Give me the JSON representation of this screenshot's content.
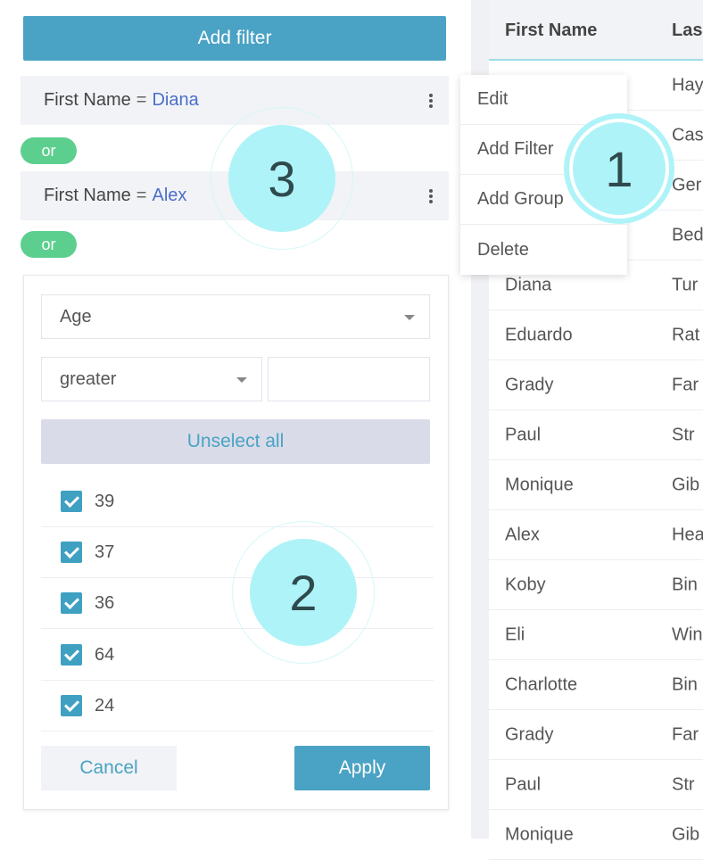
{
  "filter_panel": {
    "add_filter_label": "Add filter",
    "filters": [
      {
        "field": "First Name",
        "operator": "=",
        "value": "Diana"
      },
      {
        "field": "First Name",
        "operator": "=",
        "value": "Alex"
      }
    ],
    "connectors": [
      "or",
      "or"
    ],
    "editor": {
      "field_select": "Age",
      "operator_select": "greater",
      "value_input": "",
      "unselect_all_label": "Unselect all",
      "options": [
        {
          "label": "39",
          "checked": true
        },
        {
          "label": "37",
          "checked": true
        },
        {
          "label": "36",
          "checked": true
        },
        {
          "label": "64",
          "checked": true
        },
        {
          "label": "24",
          "checked": true
        }
      ],
      "cancel_label": "Cancel",
      "apply_label": "Apply"
    }
  },
  "context_menu": {
    "items": [
      "Edit",
      "Add Filter",
      "Add Group",
      "Delete"
    ]
  },
  "table": {
    "headers": [
      "First Name",
      "Las"
    ],
    "rows": [
      [
        "",
        "Hay"
      ],
      [
        "",
        "Cas"
      ],
      [
        "",
        "Ger"
      ],
      [
        "",
        "Bed"
      ],
      [
        "Diana",
        "Tur"
      ],
      [
        "Eduardo",
        "Rat"
      ],
      [
        "Grady",
        "Far"
      ],
      [
        "Paul",
        "Str"
      ],
      [
        "Monique",
        "Gib"
      ],
      [
        "Alex",
        "Hea"
      ],
      [
        "Koby",
        "Bin"
      ],
      [
        "Eli",
        "Win"
      ],
      [
        "Charlotte",
        "Bin"
      ],
      [
        "Grady",
        "Far"
      ],
      [
        "Paul",
        "Str"
      ],
      [
        "Monique",
        "Gib"
      ]
    ]
  },
  "annotations": [
    "1",
    "2",
    "3"
  ],
  "colors": {
    "accent": "#4aa3c4",
    "connector": "#5ccf8f",
    "filter_value": "#4a6fc9",
    "marker": "#aef3f8"
  }
}
